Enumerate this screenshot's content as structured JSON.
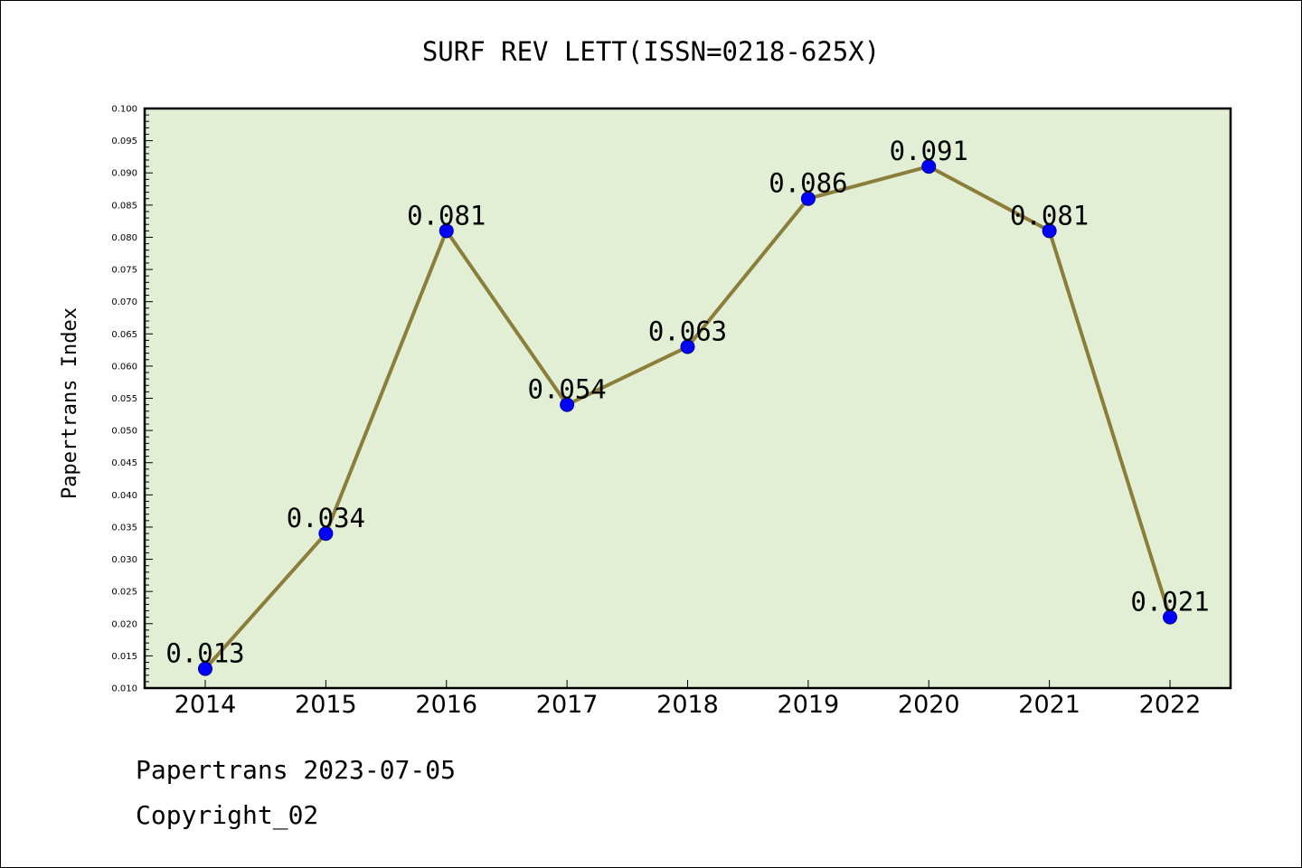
{
  "chart_data": {
    "type": "line",
    "title": "SURF REV LETT(ISSN=0218-625X)",
    "xlabel": "",
    "ylabel": "Papertrans Index",
    "categories": [
      "2014",
      "2015",
      "2016",
      "2017",
      "2018",
      "2019",
      "2020",
      "2021",
      "2022"
    ],
    "values": [
      0.013,
      0.034,
      0.081,
      0.054,
      0.063,
      0.086,
      0.091,
      0.081,
      0.021
    ],
    "data_labels": [
      "0.013",
      "0.034",
      "0.081",
      "0.054",
      "0.063",
      "0.086",
      "0.091",
      "0.081",
      "0.021"
    ],
    "ylim": [
      0.01,
      0.1
    ],
    "yticks": [
      "0.010",
      "0.015",
      "0.020",
      "0.025",
      "0.030",
      "0.035",
      "0.040",
      "0.045",
      "0.050",
      "0.055",
      "0.060",
      "0.065",
      "0.070",
      "0.075",
      "0.080",
      "0.085",
      "0.090",
      "0.095",
      "0.100"
    ],
    "grid": false,
    "legend": "none",
    "colors": {
      "plot_background": "#e2efd4",
      "line": "#8b7d3a",
      "marker": "#0000ff"
    }
  },
  "footer": {
    "line1": "Papertrans 2023-07-05",
    "line2": "Copyright_02"
  }
}
